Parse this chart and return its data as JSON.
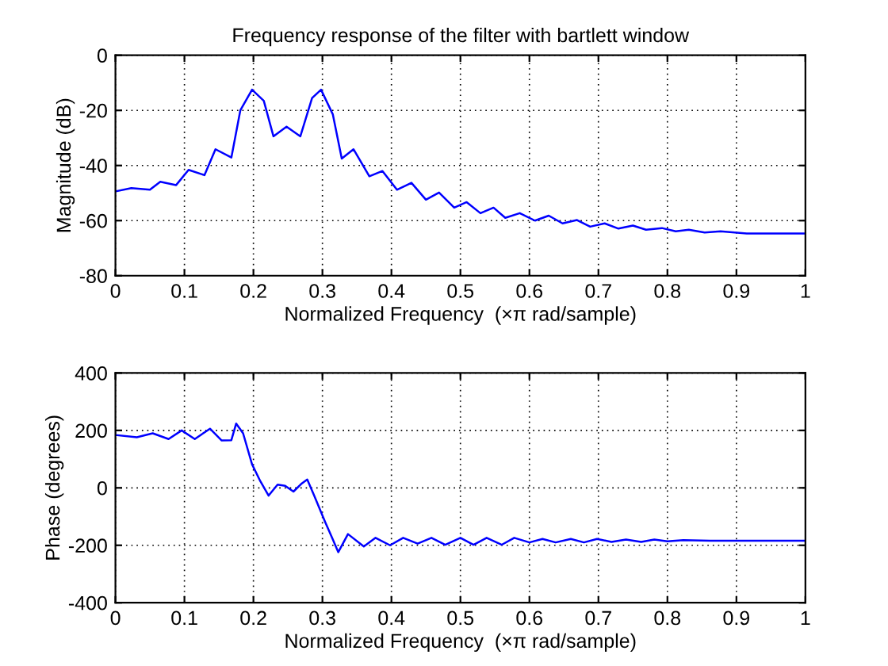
{
  "chart_data": [
    {
      "type": "line",
      "title": "Frequency response of the filter with bartlett window",
      "xlabel": "Normalized Frequency  (×π rad/sample)",
      "ylabel": "Magnitude (dB)",
      "xlim": [
        0,
        1
      ],
      "ylim": [
        -80,
        0
      ],
      "xticks": [
        0,
        0.1,
        0.2,
        0.3,
        0.4,
        0.5,
        0.6,
        0.7,
        0.8,
        0.9,
        1
      ],
      "yticks": [
        -80,
        -60,
        -40,
        -20,
        0
      ],
      "grid": true,
      "marker": "none",
      "line_style": "solid",
      "series": [
        {
          "color": "#0000ff",
          "x": [
            0,
            0.023,
            0.05,
            0.065,
            0.088,
            0.106,
            0.129,
            0.145,
            0.168,
            0.181,
            0.198,
            0.215,
            0.229,
            0.248,
            0.268,
            0.285,
            0.298,
            0.315,
            0.328,
            0.345,
            0.368,
            0.387,
            0.408,
            0.429,
            0.45,
            0.469,
            0.491,
            0.509,
            0.529,
            0.548,
            0.565,
            0.586,
            0.608,
            0.628,
            0.648,
            0.669,
            0.688,
            0.709,
            0.729,
            0.75,
            0.769,
            0.792,
            0.812,
            0.831,
            0.854,
            0.877,
            0.915,
            1
          ],
          "values": [
            -49.4,
            -48.2,
            -48.8,
            -45.9,
            -47.1,
            -41.6,
            -43.5,
            -34.1,
            -37.1,
            -20,
            -12.5,
            -16.5,
            -29.4,
            -25.9,
            -29.4,
            -15.5,
            -12.5,
            -21.4,
            -37.5,
            -34.1,
            -43.9,
            -42,
            -48.8,
            -46.3,
            -52.4,
            -49.8,
            -55.3,
            -53.3,
            -57.3,
            -55.3,
            -59,
            -57.3,
            -60,
            -58.2,
            -61,
            -59.8,
            -62.2,
            -61,
            -62.9,
            -61.8,
            -63.3,
            -62.7,
            -63.9,
            -63.3,
            -64.3,
            -63.9,
            -64.7,
            -64.7
          ]
        }
      ]
    },
    {
      "type": "line",
      "xlabel": "Normalized Frequency  (×π rad/sample)",
      "ylabel": "Phase (degrees)",
      "xlim": [
        0,
        1
      ],
      "ylim": [
        -400,
        400
      ],
      "xticks": [
        0,
        0.1,
        0.2,
        0.3,
        0.4,
        0.5,
        0.6,
        0.7,
        0.8,
        0.9,
        1
      ],
      "yticks": [
        -400,
        -200,
        0,
        200,
        400
      ],
      "grid": true,
      "marker": "none",
      "line_style": "solid",
      "series": [
        {
          "color": "#0000ff",
          "x": [
            0,
            0.031,
            0.054,
            0.077,
            0.096,
            0.115,
            0.137,
            0.154,
            0.168,
            0.175,
            0.185,
            0.198,
            0.21,
            0.222,
            0.235,
            0.246,
            0.258,
            0.269,
            0.278,
            0.288,
            0.304,
            0.314,
            0.323,
            0.337,
            0.36,
            0.377,
            0.398,
            0.417,
            0.438,
            0.458,
            0.478,
            0.5,
            0.519,
            0.538,
            0.56,
            0.578,
            0.6,
            0.619,
            0.638,
            0.66,
            0.679,
            0.698,
            0.719,
            0.74,
            0.762,
            0.781,
            0.8,
            0.823,
            0.862,
            1
          ],
          "values": [
            184,
            176,
            190,
            170,
            200,
            170,
            206,
            165,
            166,
            224,
            190,
            82,
            23,
            -27,
            11,
            7,
            -13,
            13,
            29,
            -27,
            -119,
            -174,
            -224,
            -161,
            -204,
            -174,
            -200,
            -174,
            -194,
            -174,
            -198,
            -174,
            -198,
            -174,
            -198,
            -174,
            -190,
            -178,
            -190,
            -178,
            -190,
            -178,
            -188,
            -180,
            -188,
            -180,
            -186,
            -182,
            -184,
            -184
          ]
        }
      ]
    }
  ]
}
